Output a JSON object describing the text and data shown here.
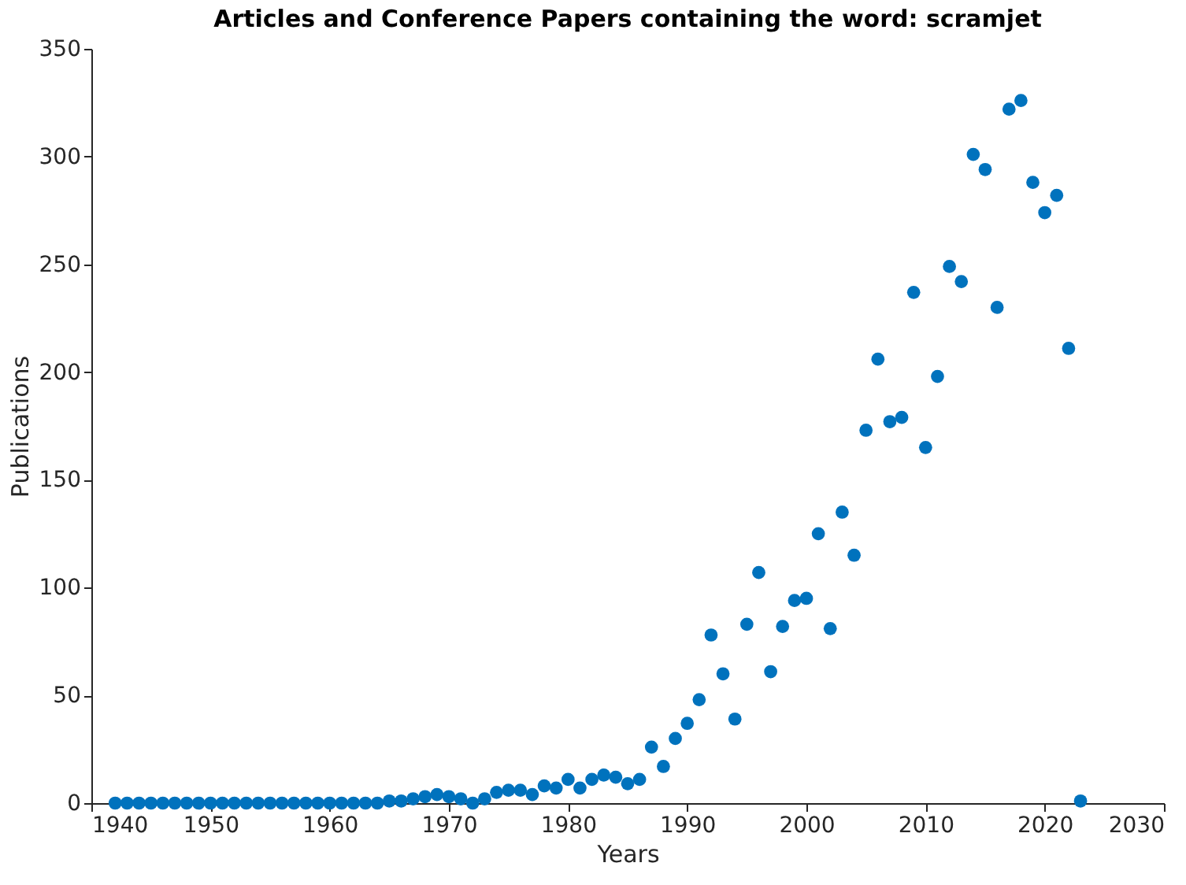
{
  "chart_data": {
    "type": "scatter",
    "title": "Articles and Conference Papers containing the word: scramjet",
    "xlabel": "Years",
    "ylabel": "Publications",
    "x": [
      1942,
      1943,
      1944,
      1945,
      1946,
      1947,
      1948,
      1949,
      1950,
      1951,
      1952,
      1953,
      1954,
      1955,
      1956,
      1957,
      1958,
      1959,
      1960,
      1961,
      1962,
      1963,
      1964,
      1965,
      1966,
      1967,
      1968,
      1969,
      1970,
      1971,
      1972,
      1973,
      1974,
      1975,
      1976,
      1977,
      1978,
      1979,
      1980,
      1981,
      1982,
      1983,
      1984,
      1985,
      1986,
      1987,
      1988,
      1989,
      1990,
      1991,
      1992,
      1993,
      1994,
      1995,
      1996,
      1997,
      1998,
      1999,
      2000,
      2001,
      2002,
      2003,
      2004,
      2005,
      2006,
      2007,
      2008,
      2009,
      2010,
      2011,
      2012,
      2013,
      2014,
      2015,
      2016,
      2017,
      2018,
      2019,
      2020,
      2021,
      2022,
      2023
    ],
    "series": [
      {
        "color": "#0072bd",
        "values": [
          0,
          0,
          0,
          0,
          0,
          0,
          0,
          0,
          0,
          0,
          0,
          0,
          0,
          0,
          0,
          0,
          0,
          0,
          0,
          0,
          0,
          0,
          0,
          1,
          1,
          2,
          3,
          4,
          3,
          2,
          0,
          2,
          5,
          6,
          6,
          4,
          8,
          7,
          11,
          7,
          11,
          13,
          12,
          9,
          11,
          26,
          17,
          30,
          37,
          48,
          78,
          60,
          39,
          83,
          107,
          61,
          82,
          94,
          95,
          125,
          81,
          135,
          115,
          173,
          206,
          177,
          179,
          237,
          165,
          198,
          249,
          242,
          301,
          294,
          230,
          322,
          326,
          288,
          274,
          282,
          211,
          1
        ]
      }
    ],
    "xlim": [
      1940,
      2030
    ],
    "xticks": [
      1940,
      1950,
      1960,
      1970,
      1980,
      1990,
      2000,
      2010,
      2020,
      2030
    ],
    "ylim": [
      0,
      350
    ],
    "yticks": [
      0,
      50,
      100,
      150,
      200,
      250,
      300,
      350
    ],
    "marker": "circle",
    "grid": false
  }
}
